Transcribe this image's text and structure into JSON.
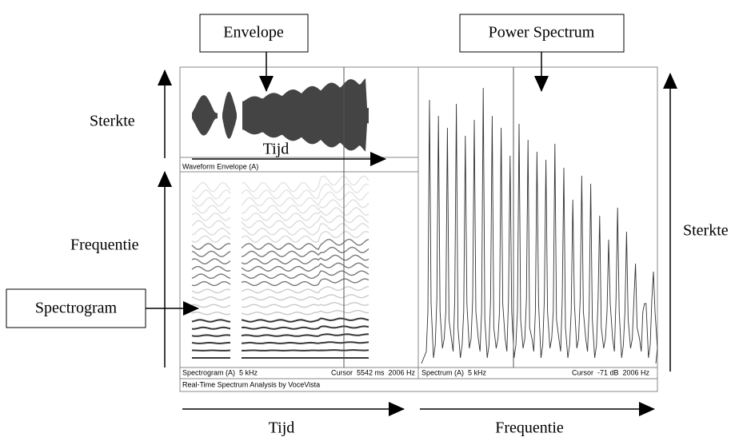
{
  "labels": {
    "envelope": "Envelope",
    "power_spectrum": "Power Spectrum",
    "spectrogram": "Spectrogram",
    "sterkte_left": "Sterkte",
    "frequentie_left": "Frequentie",
    "sterkte_right": "Sterkte",
    "tijd_middle": "Tijd",
    "tijd_bottom": "Tijd",
    "frequentie_bottom": "Frequentie"
  },
  "app": {
    "waveform_title": "Waveform Envelope (A)",
    "spectrogram_status": "Spectrogram (A)  5 kHz",
    "spectrogram_cursor": "Cursor  5542 ms  2006 Hz",
    "spectrum_status": "Spectrum (A)  5 kHz",
    "spectrum_cursor": "Cursor  -71 dB  2006 Hz",
    "footer": "Real-Time Spectrum Analysis by VoceVista"
  }
}
